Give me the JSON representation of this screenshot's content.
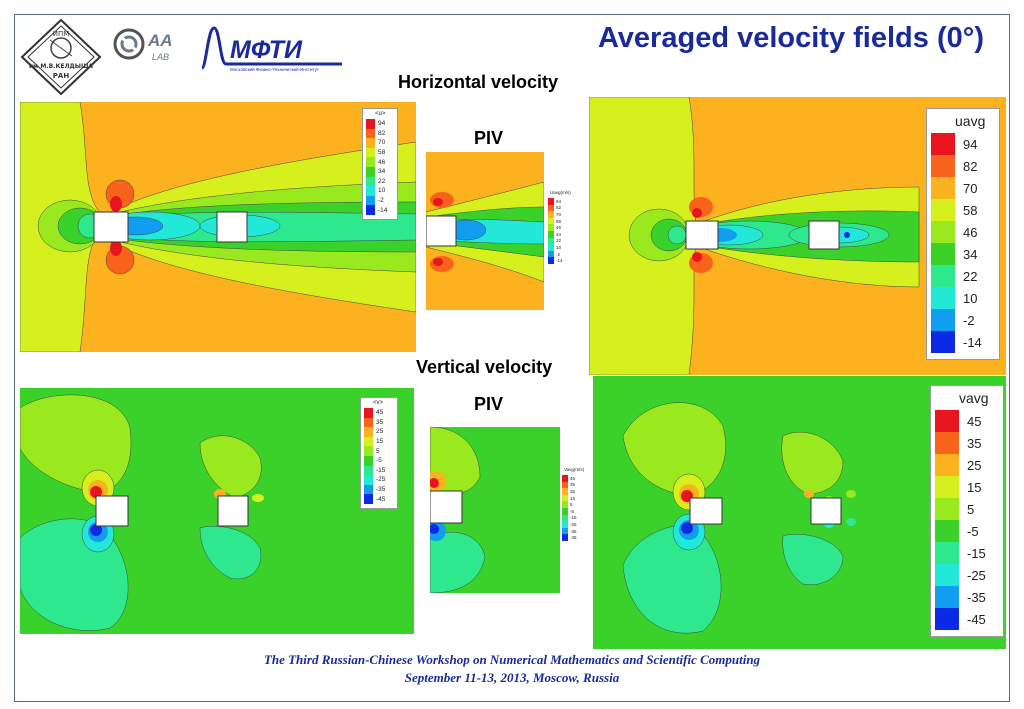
{
  "header": {
    "title": "Averaged velocity fields (0°)",
    "logos": [
      "ras-keldysh-logo",
      "aa-lab-logo",
      "mipt-logo"
    ],
    "mipt_text": "МФТИ",
    "mipt_subtext": "Московский Физико-Технический Институт",
    "ras_text_top": "ИПМ",
    "ras_text_mid": "им.М.В.КЕЛДЫША",
    "ras_text_bot": "РАН",
    "aa_text": "AA",
    "aa_sub": "LAB"
  },
  "sections": {
    "horizontal_label": "Horizontal velocity",
    "vertical_label": "Vertical velocity",
    "piv_label_top": "PIV",
    "piv_label_bottom": "PIV"
  },
  "legends": {
    "u_left": {
      "title": "<u>",
      "values": [
        "94",
        "82",
        "70",
        "58",
        "46",
        "34",
        "22",
        "10",
        "-2",
        "-14"
      ]
    },
    "u_piv": {
      "title": "Uavg(m/s)",
      "values": [
        "94",
        "82",
        "70",
        "58",
        "46",
        "34",
        "22",
        "10",
        "-2",
        "-14"
      ]
    },
    "u_right": {
      "title": "uavg",
      "values": [
        "94",
        "82",
        "70",
        "58",
        "46",
        "34",
        "22",
        "10",
        "-2",
        "-14"
      ]
    },
    "v_left": {
      "title": "<v>",
      "values": [
        "45",
        "35",
        "25",
        "15",
        "5",
        "-5",
        "-15",
        "-25",
        "-35",
        "-45"
      ]
    },
    "v_piv": {
      "title": "Vavg(m/s)",
      "values": [
        "45",
        "35",
        "25",
        "15",
        "5",
        "-5",
        "-15",
        "-25",
        "-35",
        "-45"
      ]
    },
    "v_right": {
      "title": "vavg",
      "values": [
        "45",
        "35",
        "25",
        "15",
        "5",
        "-5",
        "-15",
        "-25",
        "-35",
        "-45"
      ]
    }
  },
  "colors": {
    "scale": [
      "#e8141e",
      "#f8621a",
      "#fbb21e",
      "#d6f01e",
      "#9ae81e",
      "#3ad22a",
      "#2ee88e",
      "#22e8d8",
      "#129ef0",
      "#0a2ae6"
    ],
    "u_background": "#fbb21e",
    "v_background": "#4ad84a",
    "accent": "#1a2a9a"
  },
  "footer": {
    "line1": "The Third Russian-Chinese Workshop on Numerical Mathematics and Scientific Computing",
    "line2": "September 11-13, 2013, Moscow, Russia"
  }
}
